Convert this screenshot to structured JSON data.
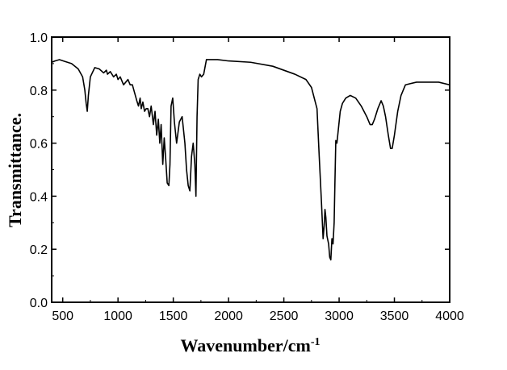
{
  "chart_data": {
    "type": "line",
    "title": "",
    "xlabel": "Wavenumber/cm",
    "xlabel_superscript": "-1",
    "ylabel": "Transmittance.",
    "xlim": [
      400,
      4000
    ],
    "ylim": [
      0.0,
      1.0
    ],
    "x_major_ticks": [
      500,
      1000,
      1500,
      2000,
      2500,
      3000,
      3500,
      4000
    ],
    "x_tick_labels": [
      "500",
      "1000",
      "1500",
      "2000",
      "2500",
      "3000",
      "3500",
      "4000"
    ],
    "y_major_ticks": [
      0.0,
      0.2,
      0.4,
      0.6,
      0.8,
      1.0
    ],
    "y_tick_labels": [
      "0.0",
      "0.2",
      "0.4",
      "0.6",
      "0.8",
      "1.0"
    ],
    "grid": false,
    "legend": "none",
    "line_color": "#000000",
    "series": [
      {
        "x": [
          400,
          430,
          470,
          520,
          580,
          640,
          680,
          700,
          712,
          722,
          732,
          750,
          790,
          830,
          870,
          895,
          905,
          930,
          960,
          985,
          1000,
          1020,
          1050,
          1070,
          1090,
          1110,
          1130,
          1150,
          1170,
          1185,
          1200,
          1210,
          1225,
          1240,
          1255,
          1270,
          1285,
          1300,
          1320,
          1335,
          1350,
          1365,
          1378,
          1390,
          1405,
          1418,
          1430,
          1445,
          1460,
          1470,
          1480,
          1495,
          1510,
          1530,
          1555,
          1580,
          1605,
          1620,
          1635,
          1650,
          1665,
          1680,
          1695,
          1705,
          1715,
          1725,
          1740,
          1755,
          1775,
          1800,
          1900,
          2000,
          2200,
          2400,
          2600,
          2700,
          2750,
          2800,
          2820,
          2840,
          2855,
          2865,
          2872,
          2880,
          2890,
          2905,
          2915,
          2925,
          2935,
          2945,
          2955,
          2962,
          2970,
          2980,
          2990,
          3000,
          3010,
          3030,
          3060,
          3100,
          3150,
          3200,
          3250,
          3280,
          3300,
          3320,
          3350,
          3380,
          3400,
          3420,
          3445,
          3465,
          3480,
          3500,
          3530,
          3560,
          3600,
          3700,
          3800,
          3900,
          4000
        ],
        "y": [
          0.905,
          0.91,
          0.915,
          0.908,
          0.9,
          0.88,
          0.85,
          0.8,
          0.75,
          0.72,
          0.78,
          0.85,
          0.885,
          0.88,
          0.865,
          0.875,
          0.86,
          0.87,
          0.85,
          0.86,
          0.84,
          0.85,
          0.82,
          0.83,
          0.84,
          0.82,
          0.82,
          0.79,
          0.76,
          0.74,
          0.77,
          0.73,
          0.755,
          0.72,
          0.73,
          0.73,
          0.7,
          0.74,
          0.67,
          0.72,
          0.63,
          0.69,
          0.6,
          0.67,
          0.52,
          0.62,
          0.55,
          0.45,
          0.44,
          0.52,
          0.74,
          0.77,
          0.68,
          0.6,
          0.68,
          0.7,
          0.6,
          0.5,
          0.44,
          0.42,
          0.55,
          0.6,
          0.52,
          0.4,
          0.7,
          0.84,
          0.86,
          0.85,
          0.86,
          0.915,
          0.915,
          0.91,
          0.905,
          0.89,
          0.86,
          0.84,
          0.81,
          0.73,
          0.55,
          0.38,
          0.24,
          0.29,
          0.35,
          0.32,
          0.25,
          0.22,
          0.17,
          0.16,
          0.24,
          0.22,
          0.3,
          0.45,
          0.61,
          0.6,
          0.64,
          0.68,
          0.72,
          0.75,
          0.77,
          0.78,
          0.77,
          0.74,
          0.7,
          0.67,
          0.67,
          0.69,
          0.73,
          0.76,
          0.74,
          0.7,
          0.63,
          0.58,
          0.58,
          0.63,
          0.72,
          0.78,
          0.82,
          0.83,
          0.83,
          0.83,
          0.82
        ]
      }
    ]
  }
}
